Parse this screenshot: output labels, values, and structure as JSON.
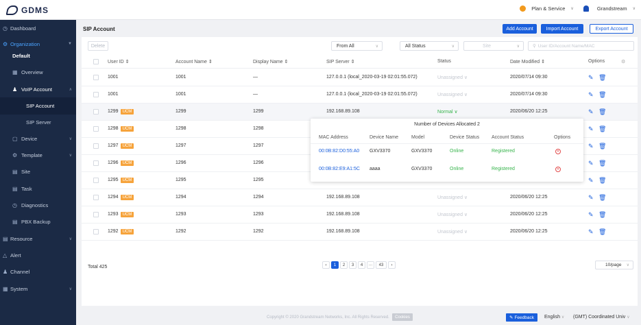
{
  "header": {
    "brand": "GDMS",
    "plan_service": "Plan & Service",
    "user": "Grandstream"
  },
  "sidebar": {
    "dashboard": "Dashboard",
    "organization": "Organization",
    "org_default": "Default",
    "overview": "Overview",
    "voip_account": "VoIP Account",
    "sip_account": "SIP Account",
    "sip_server": "SIP Server",
    "device": "Device",
    "template": "Template",
    "site": "Site",
    "task": "Task",
    "diagnostics": "Diagnostics",
    "pbx_backup": "PBX Backup",
    "resource": "Resource",
    "alert": "Alert",
    "channel": "Channel",
    "system": "System"
  },
  "page": {
    "title": "SIP Account",
    "add_account": "Add Account",
    "import_account": "Import Account",
    "export_account": "Export Account",
    "delete": "Delete",
    "filter_from": "From All",
    "filter_status": "All Status",
    "filter_site": "Site",
    "search_placeholder": "User ID/Account Name/MAC"
  },
  "table": {
    "columns": {
      "user_id": "User ID ⇕",
      "account_name": "Account Name ⇕",
      "display_name": "Display Name ⇕",
      "sip_server": "SIP Server ⇕",
      "status": "Status",
      "date_modified": "Date Modified ⇕",
      "options": "Options"
    },
    "ucm_badge": "UCM",
    "rows": [
      {
        "user_id": "1001",
        "account_name": "1001",
        "display_name": "—",
        "sip_server": "127.0.0.1 (local_2020-03-19 02:01:55.072)",
        "status": "Unassigned ∨",
        "date": "2020/07/14 09:30"
      },
      {
        "user_id": "1001",
        "account_name": "1001",
        "display_name": "—",
        "sip_server": "127.0.0.1 (local_2020-03-19 02:01:55.072)",
        "status": "Unassigned ∨",
        "date": "2020/07/14 09:30"
      },
      {
        "user_id": "1299",
        "account_name": "1299",
        "display_name": "1299",
        "sip_server": "192.168.89.108",
        "status": "Normal ∨",
        "date": "2020/06/20 12:25"
      },
      {
        "user_id": "1298",
        "account_name": "1298",
        "display_name": "1298",
        "sip_server": "",
        "status": "",
        "date": ""
      },
      {
        "user_id": "1297",
        "account_name": "1297",
        "display_name": "1297",
        "sip_server": "",
        "status": "",
        "date": ""
      },
      {
        "user_id": "1296",
        "account_name": "1296",
        "display_name": "1296",
        "sip_server": "",
        "status": "",
        "date": ""
      },
      {
        "user_id": "1295",
        "account_name": "1295",
        "display_name": "1295",
        "sip_server": "",
        "status": "",
        "date": ""
      },
      {
        "user_id": "1294",
        "account_name": "1294",
        "display_name": "1294",
        "sip_server": "192.168.89.108",
        "status": "Unassigned ∨",
        "date": "2020/06/20 12:25"
      },
      {
        "user_id": "1293",
        "account_name": "1293",
        "display_name": "1293",
        "sip_server": "192.168.89.108",
        "status": "Unassigned ∨",
        "date": "2020/06/20 12:25"
      },
      {
        "user_id": "1292",
        "account_name": "1292",
        "display_name": "1292",
        "sip_server": "192.168.89.108",
        "status": "Unassigned ∨",
        "date": "2020/06/20 12:25"
      }
    ]
  },
  "popup": {
    "title": "Number of Devices Allocated 2",
    "columns": {
      "mac": "MAC Address",
      "device_name": "Device Name",
      "model": "Model",
      "device_status": "Device Status",
      "account_status": "Account Status",
      "options": "Options"
    },
    "rows": [
      {
        "mac": "00:0B:82:D0:55:A0",
        "device_name": "GXV3370",
        "model": "GXV3370",
        "device_status": "Online",
        "account_status": "Registered"
      },
      {
        "mac": "00:0B:82:E9:A1:5C",
        "device_name": "aaaa",
        "model": "GXV3370",
        "device_status": "Online",
        "account_status": "Registered"
      }
    ]
  },
  "pagination": {
    "total": "Total 425",
    "pages": [
      "1",
      "2",
      "3",
      "4",
      "···",
      "43"
    ],
    "page_size": "10/page"
  },
  "footer": {
    "copyright": "Copyright © 2020 Grandstream Networks, Inc. All Rights Reserved.",
    "cookies": "Cookies",
    "feedback": "Feedback",
    "language": "English",
    "timezone": "(GMT) Coordinated Univ"
  }
}
